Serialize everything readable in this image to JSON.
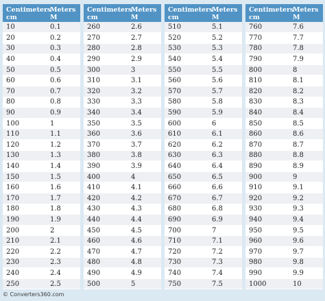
{
  "header": {
    "col1": [
      "Centimeters",
      "cm"
    ],
    "col2": [
      "Meters",
      "M"
    ]
  },
  "tables": [
    {
      "rows": [
        [
          "10",
          "0.1"
        ],
        [
          "20",
          "0.2"
        ],
        [
          "30",
          "0.3"
        ],
        [
          "40",
          "0.4"
        ],
        [
          "50",
          "0.5"
        ],
        [
          "60",
          "0.6"
        ],
        [
          "70",
          "0.7"
        ],
        [
          "80",
          "0.8"
        ],
        [
          "90",
          "0.9"
        ],
        [
          "100",
          "1"
        ],
        [
          "110",
          "1.1"
        ],
        [
          "120",
          "1.2"
        ],
        [
          "130",
          "1.3"
        ],
        [
          "140",
          "1.4"
        ],
        [
          "150",
          "1.5"
        ],
        [
          "160",
          "1.6"
        ],
        [
          "170",
          "1.7"
        ],
        [
          "180",
          "1.8"
        ],
        [
          "190",
          "1.9"
        ],
        [
          "200",
          "2"
        ],
        [
          "210",
          "2.1"
        ],
        [
          "220",
          "2.2"
        ],
        [
          "230",
          "2.3"
        ],
        [
          "240",
          "2.4"
        ],
        [
          "250",
          "2.5"
        ]
      ]
    },
    {
      "rows": [
        [
          "260",
          "2.6"
        ],
        [
          "270",
          "2.7"
        ],
        [
          "280",
          "2.8"
        ],
        [
          "290",
          "2.9"
        ],
        [
          "300",
          "3"
        ],
        [
          "310",
          "3.1"
        ],
        [
          "320",
          "3.2"
        ],
        [
          "330",
          "3.3"
        ],
        [
          "340",
          "3.4"
        ],
        [
          "350",
          "3.5"
        ],
        [
          "360",
          "3.6"
        ],
        [
          "370",
          "3.7"
        ],
        [
          "380",
          "3.8"
        ],
        [
          "390",
          "3.9"
        ],
        [
          "400",
          "4"
        ],
        [
          "410",
          "4.1"
        ],
        [
          "420",
          "4.2"
        ],
        [
          "430",
          "4.3"
        ],
        [
          "440",
          "4.4"
        ],
        [
          "450",
          "4.5"
        ],
        [
          "460",
          "4.6"
        ],
        [
          "470",
          "4.7"
        ],
        [
          "480",
          "4.8"
        ],
        [
          "490",
          "4.9"
        ],
        [
          "500",
          "5"
        ]
      ]
    },
    {
      "rows": [
        [
          "510",
          "5.1"
        ],
        [
          "520",
          "5.2"
        ],
        [
          "530",
          "5.3"
        ],
        [
          "540",
          "5.4"
        ],
        [
          "550",
          "5.5"
        ],
        [
          "560",
          "5.6"
        ],
        [
          "570",
          "5.7"
        ],
        [
          "580",
          "5.8"
        ],
        [
          "590",
          "5.9"
        ],
        [
          "600",
          "6"
        ],
        [
          "610",
          "6.1"
        ],
        [
          "620",
          "6.2"
        ],
        [
          "630",
          "6.3"
        ],
        [
          "640",
          "6.4"
        ],
        [
          "650",
          "6.5"
        ],
        [
          "660",
          "6.6"
        ],
        [
          "670",
          "6.7"
        ],
        [
          "680",
          "6.8"
        ],
        [
          "690",
          "6.9"
        ],
        [
          "700",
          "7"
        ],
        [
          "710",
          "7.1"
        ],
        [
          "720",
          "7.2"
        ],
        [
          "730",
          "7.3"
        ],
        [
          "740",
          "7.4"
        ],
        [
          "750",
          "7.5"
        ]
      ]
    },
    {
      "rows": [
        [
          "760",
          "7.6"
        ],
        [
          "770",
          "7.7"
        ],
        [
          "780",
          "7.8"
        ],
        [
          "790",
          "7.9"
        ],
        [
          "800",
          "8"
        ],
        [
          "810",
          "8.1"
        ],
        [
          "820",
          "8.2"
        ],
        [
          "830",
          "8.3"
        ],
        [
          "840",
          "8.4"
        ],
        [
          "850",
          "8.5"
        ],
        [
          "860",
          "8.6"
        ],
        [
          "870",
          "8.7"
        ],
        [
          "880",
          "8.8"
        ],
        [
          "890",
          "8.9"
        ],
        [
          "900",
          "9"
        ],
        [
          "910",
          "9.1"
        ],
        [
          "920",
          "9.2"
        ],
        [
          "930",
          "9.3"
        ],
        [
          "940",
          "9.4"
        ],
        [
          "950",
          "9.5"
        ],
        [
          "960",
          "9.6"
        ],
        [
          "970",
          "9.7"
        ],
        [
          "980",
          "9.8"
        ],
        [
          "990",
          "9.9"
        ],
        [
          "1000",
          "10"
        ]
      ]
    }
  ],
  "footer": "© Converters360.com",
  "colors": {
    "header_bg": "#5193c5",
    "page_bg": "#dbe9f3",
    "row_alt": "#eef0f3"
  }
}
